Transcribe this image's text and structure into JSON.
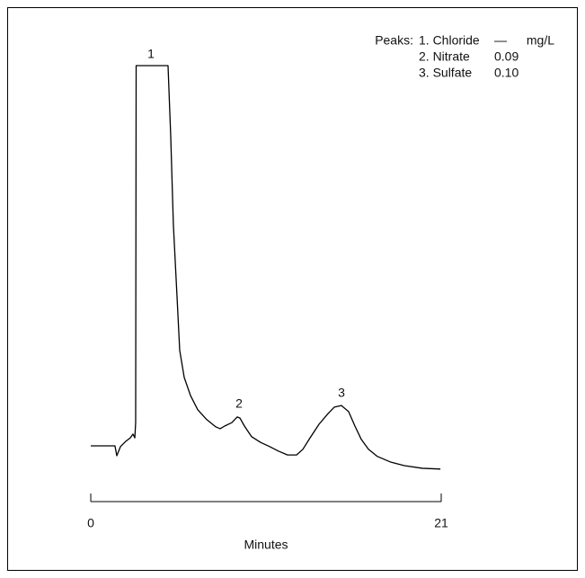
{
  "chart_data": {
    "type": "line",
    "x_label": "Minutes",
    "xlim": [
      0,
      21
    ],
    "xticks": [
      0,
      21
    ],
    "ylim": [
      -7,
      100
    ],
    "color": "#000000",
    "x": [
      0,
      1.45,
      1.56,
      1.78,
      2.1,
      2.37,
      2.53,
      2.64,
      2.69,
      2.72,
      4.63,
      4.79,
      4.95,
      5.17,
      5.33,
      5.6,
      5.98,
      6.41,
      6.95,
      7.49,
      7.75,
      8.02,
      8.45,
      8.78,
      8.94,
      9.21,
      9.64,
      10.18,
      10.72,
      11.26,
      11.79,
      12.33,
      12.71,
      13.14,
      13.68,
      14.22,
      14.6,
      15.02,
      15.45,
      15.83,
      16.21,
      16.64,
      17.18,
      17.99,
      18.79,
      19.87,
      20.95
    ],
    "values": [
      0,
      0,
      -2.6,
      -0.2,
      1.2,
      2.1,
      3.1,
      2.1,
      6.1,
      100,
      100,
      81.6,
      58.2,
      39.2,
      25.1,
      18,
      13.2,
      9.5,
      6.9,
      5,
      4.5,
      5.2,
      6.1,
      7.6,
      7.3,
      5.2,
      2.4,
      0.9,
      -0.2,
      -1.4,
      -2.4,
      -2.4,
      -0.9,
      2.1,
      5.7,
      8.5,
      10.2,
      10.6,
      9,
      5.2,
      1.7,
      -0.9,
      -2.8,
      -4.3,
      -5.2,
      -5.9,
      -6.1
    ],
    "peak_labels": [
      "1",
      "2",
      "3"
    ],
    "legend": {
      "title": "Peaks:",
      "unit": "mg/L",
      "rows": [
        [
          "1. Chloride",
          "—"
        ],
        [
          "2. Nitrate",
          "0.09"
        ],
        [
          "3. Sulfate",
          "0.10"
        ]
      ]
    }
  }
}
